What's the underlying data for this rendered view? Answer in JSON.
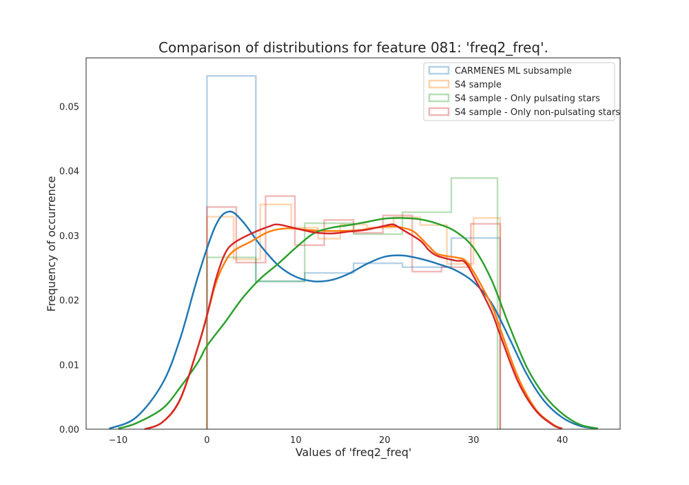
{
  "chart_data": {
    "type": "line",
    "title": "Comparison of distributions for feature 081: 'freq2_freq'.",
    "xlabel": "Values of 'freq2_freq'",
    "ylabel": "Frequency of occurrence",
    "xlim": [
      -13.6,
      46.5
    ],
    "ylim": [
      0,
      0.0575
    ],
    "xticks": [
      -10,
      0,
      10,
      20,
      30,
      40
    ],
    "xtick_labels": [
      "−10",
      "0",
      "10",
      "20",
      "30",
      "40"
    ],
    "yticks": [
      0,
      0.01,
      0.02,
      0.03,
      0.04,
      0.05
    ],
    "ytick_labels": [
      "0.00",
      "0.01",
      "0.02",
      "0.03",
      "0.04",
      "0.05"
    ],
    "grid": false,
    "legend_position": "top-right",
    "series": [
      {
        "name": "CARMENES ML subsample",
        "color": "#1f77b4",
        "hist_edges": [
          0,
          5.5,
          11,
          16.5,
          22,
          27.5,
          33
        ],
        "hist_values": [
          0.0547,
          0.0229,
          0.0242,
          0.0257,
          0.0251,
          0.0296
        ],
        "kde": [
          [
            -11,
            0.0001
          ],
          [
            -8,
            0.0018
          ],
          [
            -5,
            0.0071
          ],
          [
            -3,
            0.0141
          ],
          [
            -1,
            0.0237
          ],
          [
            1,
            0.0316
          ],
          [
            2.5,
            0.0337
          ],
          [
            4,
            0.0322
          ],
          [
            6,
            0.0285
          ],
          [
            8,
            0.0254
          ],
          [
            10,
            0.0236
          ],
          [
            12,
            0.0229
          ],
          [
            14,
            0.0231
          ],
          [
            16,
            0.0241
          ],
          [
            18,
            0.0256
          ],
          [
            20,
            0.0267
          ],
          [
            22,
            0.0269
          ],
          [
            24,
            0.0264
          ],
          [
            26,
            0.0256
          ],
          [
            28,
            0.0246
          ],
          [
            30,
            0.0228
          ],
          [
            32,
            0.0196
          ],
          [
            34,
            0.0142
          ],
          [
            36,
            0.0085
          ],
          [
            38,
            0.0043
          ],
          [
            40,
            0.0018
          ],
          [
            42,
            0.0005
          ],
          [
            44,
            0.0001
          ]
        ]
      },
      {
        "name": "S4 sample",
        "color": "#ff7f0e",
        "hist_edges": [
          0,
          3,
          6,
          9.5,
          12.5,
          15,
          18,
          21,
          24,
          27,
          30,
          33
        ],
        "hist_values": [
          0.0329,
          0.0263,
          0.0348,
          0.0312,
          0.0295,
          0.0317,
          0.0312,
          0.0328,
          0.0316,
          0.0256,
          0.0327
        ],
        "kde": [
          [
            -7,
            0.0
          ],
          [
            -5,
            0.0011
          ],
          [
            -3,
            0.0046
          ],
          [
            -1,
            0.0128
          ],
          [
            0,
            0.0176
          ],
          [
            1,
            0.0226
          ],
          [
            2,
            0.0258
          ],
          [
            3,
            0.0276
          ],
          [
            5,
            0.0291
          ],
          [
            7,
            0.0306
          ],
          [
            9,
            0.0311
          ],
          [
            11,
            0.0309
          ],
          [
            13,
            0.0307
          ],
          [
            15,
            0.0307
          ],
          [
            17,
            0.0308
          ],
          [
            19,
            0.0312
          ],
          [
            21,
            0.0314
          ],
          [
            23,
            0.0308
          ],
          [
            24,
            0.0297
          ],
          [
            25,
            0.0283
          ],
          [
            26,
            0.0271
          ],
          [
            28,
            0.0266
          ],
          [
            29,
            0.0262
          ],
          [
            30,
            0.0244
          ],
          [
            32,
            0.0193
          ],
          [
            33,
            0.0156
          ],
          [
            35,
            0.0081
          ],
          [
            37,
            0.0031
          ],
          [
            39,
            0.0007
          ],
          [
            40,
            0.0001
          ]
        ]
      },
      {
        "name": "S4 sample - Only pulsating stars",
        "color": "#2ca02c",
        "hist_edges": [
          0,
          5.5,
          11,
          16.5,
          22,
          27.5,
          32.7
        ],
        "hist_values": [
          0.0266,
          0.0229,
          0.0319,
          0.0302,
          0.0336,
          0.0389
        ],
        "kde": [
          [
            -10,
            0.0001
          ],
          [
            -8,
            0.0009
          ],
          [
            -5,
            0.0032
          ],
          [
            -3,
            0.0065
          ],
          [
            -1,
            0.0104
          ],
          [
            0,
            0.0129
          ],
          [
            2,
            0.0165
          ],
          [
            4,
            0.0203
          ],
          [
            6,
            0.0233
          ],
          [
            8,
            0.0256
          ],
          [
            10,
            0.0281
          ],
          [
            12,
            0.0303
          ],
          [
            14,
            0.0312
          ],
          [
            16,
            0.0316
          ],
          [
            18,
            0.0321
          ],
          [
            20,
            0.0326
          ],
          [
            22,
            0.0327
          ],
          [
            24,
            0.0325
          ],
          [
            26,
            0.0318
          ],
          [
            28,
            0.0306
          ],
          [
            30,
            0.0281
          ],
          [
            32,
            0.0232
          ],
          [
            34,
            0.0161
          ],
          [
            36,
            0.0096
          ],
          [
            38,
            0.0052
          ],
          [
            40,
            0.0024
          ],
          [
            42,
            0.0007
          ],
          [
            44,
            0.0001
          ]
        ]
      },
      {
        "name": "S4 sample - Only non-pulsating stars",
        "color": "#d62728",
        "hist_edges": [
          0,
          3.3,
          6.6,
          9.9,
          13.2,
          16.5,
          19.8,
          23.1,
          26.4,
          29.7,
          33
        ],
        "hist_values": [
          0.0344,
          0.0258,
          0.0361,
          0.0285,
          0.0324,
          0.0304,
          0.0331,
          0.0244,
          0.0251,
          0.0318
        ],
        "kde": [
          [
            -7,
            0.0
          ],
          [
            -5,
            0.0011
          ],
          [
            -3,
            0.0047
          ],
          [
            -1,
            0.0128
          ],
          [
            0,
            0.0176
          ],
          [
            1,
            0.0232
          ],
          [
            2,
            0.0271
          ],
          [
            3,
            0.0288
          ],
          [
            5,
            0.0303
          ],
          [
            7,
            0.0314
          ],
          [
            8,
            0.0317
          ],
          [
            10,
            0.0311
          ],
          [
            12,
            0.0305
          ],
          [
            14,
            0.0303
          ],
          [
            16,
            0.0306
          ],
          [
            18,
            0.0309
          ],
          [
            20,
            0.0315
          ],
          [
            21,
            0.0317
          ],
          [
            22,
            0.0309
          ],
          [
            24,
            0.0292
          ],
          [
            25,
            0.0277
          ],
          [
            26,
            0.0268
          ],
          [
            28,
            0.0261
          ],
          [
            29,
            0.0259
          ],
          [
            30,
            0.0237
          ],
          [
            32,
            0.0183
          ],
          [
            33,
            0.0146
          ],
          [
            35,
            0.0074
          ],
          [
            37,
            0.0029
          ],
          [
            39,
            0.0006
          ],
          [
            40,
            0.0001
          ]
        ]
      }
    ]
  }
}
